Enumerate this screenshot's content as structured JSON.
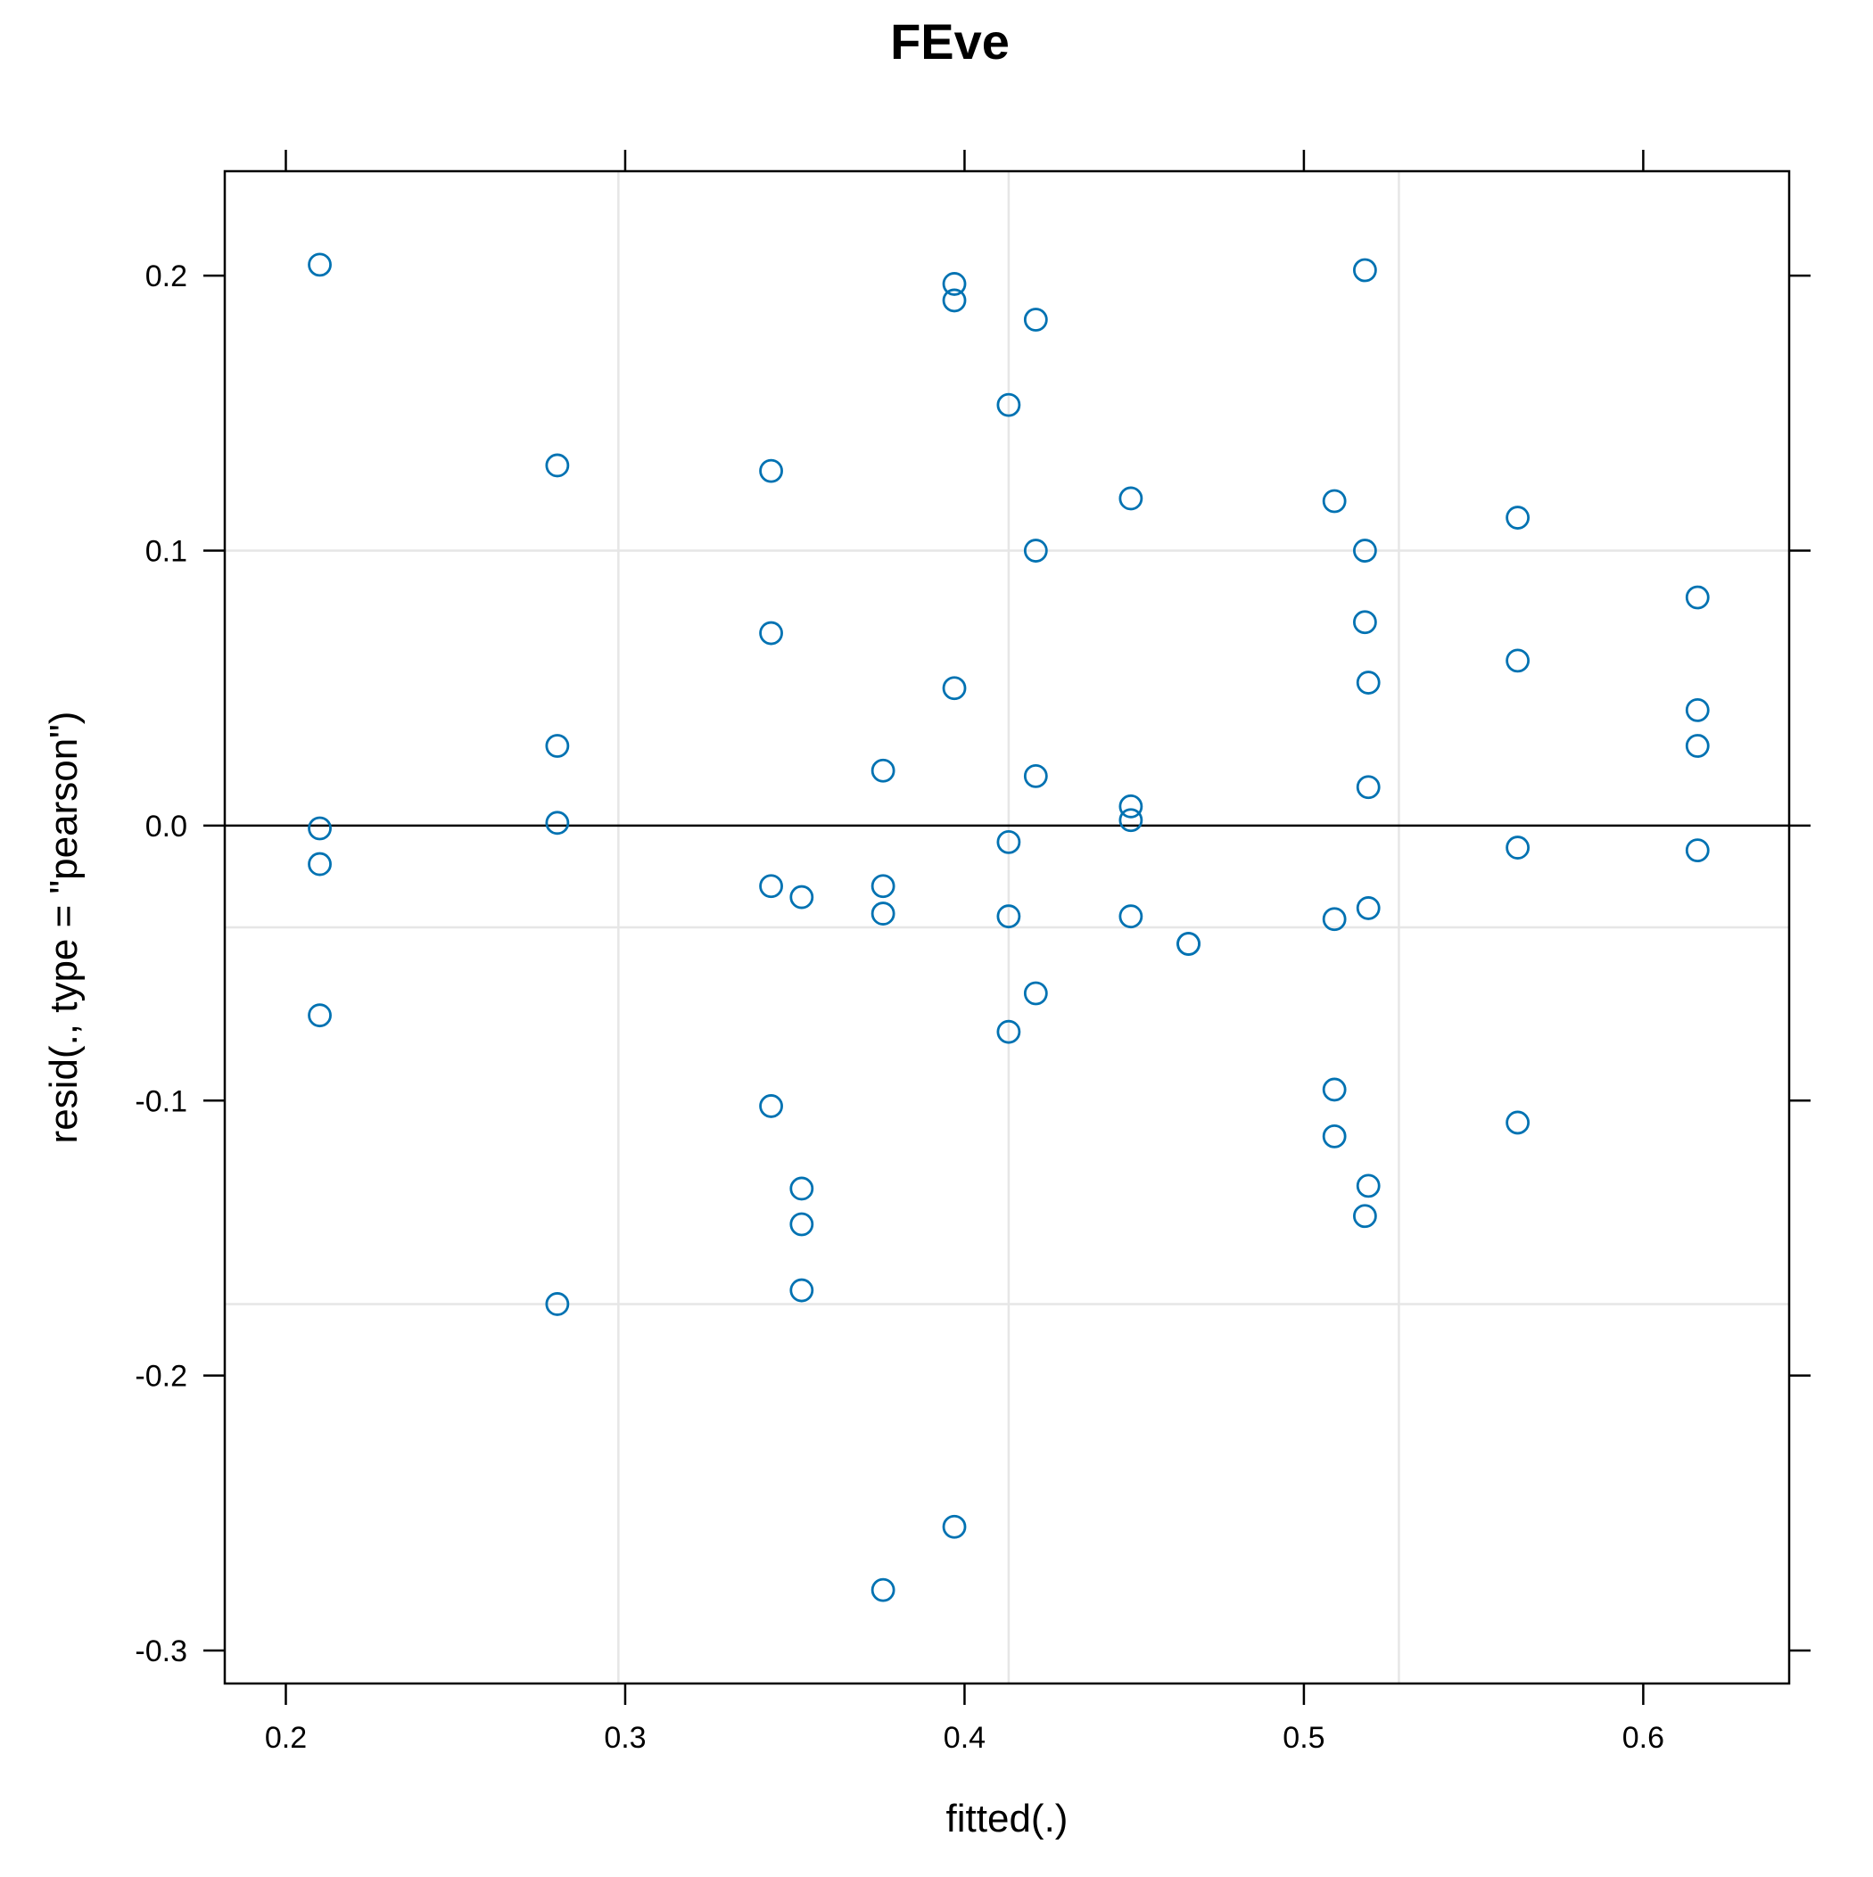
{
  "chart_data": {
    "type": "scatter",
    "title": "FEve",
    "xlabel": "fitted(.)",
    "ylabel": "resid(., type = \"pearson\")",
    "xlim": [
      0.182,
      0.643
    ],
    "ylim": [
      -0.312,
      0.238
    ],
    "xticks": [
      0.2,
      0.3,
      0.4,
      0.5,
      0.6
    ],
    "xtick_labels": [
      "0.2",
      "0.3",
      "0.4",
      "0.5",
      "0.6"
    ],
    "yticks": [
      -0.3,
      -0.2,
      -0.1,
      0.0,
      0.1,
      0.2
    ],
    "ytick_labels": [
      "-0.3",
      "-0.2",
      "-0.1",
      "0.0",
      "0.1",
      "0.2"
    ],
    "grid": true,
    "grid_x": [
      0.298,
      0.413,
      0.528
    ],
    "grid_y": [
      0.1,
      -0.037,
      -0.174
    ],
    "reference_line_y": 0.0,
    "point_color": "#0072B2",
    "gridline_color": "#e6e6e6",
    "series": [
      {
        "points": [
          [
            0.21,
            0.204
          ],
          [
            0.21,
            -0.001
          ],
          [
            0.21,
            -0.014
          ],
          [
            0.21,
            -0.069
          ],
          [
            0.28,
            0.131
          ],
          [
            0.28,
            0.029
          ],
          [
            0.28,
            0.001
          ],
          [
            0.28,
            -0.174
          ],
          [
            0.343,
            0.129
          ],
          [
            0.343,
            0.07
          ],
          [
            0.343,
            -0.022
          ],
          [
            0.343,
            -0.102
          ],
          [
            0.352,
            -0.026
          ],
          [
            0.352,
            -0.132
          ],
          [
            0.352,
            -0.145
          ],
          [
            0.352,
            -0.169
          ],
          [
            0.376,
            0.02
          ],
          [
            0.376,
            -0.022
          ],
          [
            0.376,
            -0.032
          ],
          [
            0.376,
            -0.278
          ],
          [
            0.397,
            0.197
          ],
          [
            0.397,
            0.191
          ],
          [
            0.397,
            0.05
          ],
          [
            0.397,
            -0.255
          ],
          [
            0.413,
            0.153
          ],
          [
            0.413,
            -0.006
          ],
          [
            0.413,
            -0.033
          ],
          [
            0.413,
            -0.075
          ],
          [
            0.421,
            0.184
          ],
          [
            0.421,
            0.1
          ],
          [
            0.421,
            0.018
          ],
          [
            0.421,
            -0.061
          ],
          [
            0.449,
            0.119
          ],
          [
            0.449,
            0.007
          ],
          [
            0.449,
            0.002
          ],
          [
            0.449,
            -0.033
          ],
          [
            0.466,
            -0.043
          ],
          [
            0.466,
            -0.043
          ],
          [
            0.509,
            0.118
          ],
          [
            0.509,
            -0.034
          ],
          [
            0.509,
            -0.096
          ],
          [
            0.509,
            -0.113
          ],
          [
            0.518,
            0.202
          ],
          [
            0.518,
            0.1
          ],
          [
            0.518,
            0.074
          ],
          [
            0.518,
            -0.142
          ],
          [
            0.519,
            0.052
          ],
          [
            0.519,
            0.014
          ],
          [
            0.519,
            -0.03
          ],
          [
            0.519,
            -0.131
          ],
          [
            0.563,
            0.112
          ],
          [
            0.563,
            0.06
          ],
          [
            0.563,
            -0.008
          ],
          [
            0.563,
            -0.108
          ],
          [
            0.616,
            0.083
          ],
          [
            0.616,
            0.042
          ],
          [
            0.616,
            0.029
          ],
          [
            0.616,
            -0.009
          ]
        ]
      }
    ]
  }
}
